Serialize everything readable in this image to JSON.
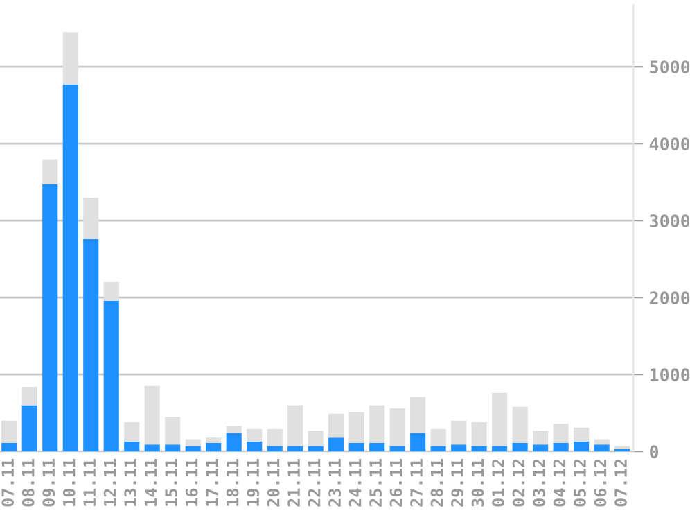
{
  "chart_data": {
    "type": "bar",
    "stacked": true,
    "grid": "y",
    "categories": [
      "07.11",
      "08.11",
      "09.11",
      "10.11",
      "11.11",
      "12.11",
      "13.11",
      "14.11",
      "15.11",
      "16.11",
      "17.11",
      "18.11",
      "19.11",
      "20.11",
      "21.11",
      "22.11",
      "23.11",
      "24.11",
      "25.11",
      "26.11",
      "27.11",
      "28.11",
      "29.11",
      "30.11",
      "01.12",
      "02.12",
      "03.12",
      "04.12",
      "05.12",
      "06.12",
      "07.12"
    ],
    "series": [
      {
        "color": "#1e90ff",
        "values": [
          110,
          600,
          3470,
          4770,
          2760,
          1960,
          130,
          90,
          90,
          70,
          110,
          240,
          130,
          70,
          70,
          70,
          180,
          110,
          110,
          70,
          240,
          70,
          90,
          70,
          70,
          110,
          90,
          110,
          130,
          90,
          30
        ]
      },
      {
        "color": "#e0e0e0",
        "values": [
          290,
          240,
          320,
          680,
          540,
          240,
          250,
          760,
          360,
          90,
          70,
          90,
          160,
          220,
          530,
          200,
          310,
          400,
          490,
          490,
          470,
          220,
          310,
          310,
          690,
          470,
          180,
          250,
          180,
          70,
          40
        ]
      }
    ],
    "ylim": [
      0,
      5800
    ],
    "yticks": [
      0,
      1000,
      2000,
      3000,
      4000,
      5000
    ]
  }
}
